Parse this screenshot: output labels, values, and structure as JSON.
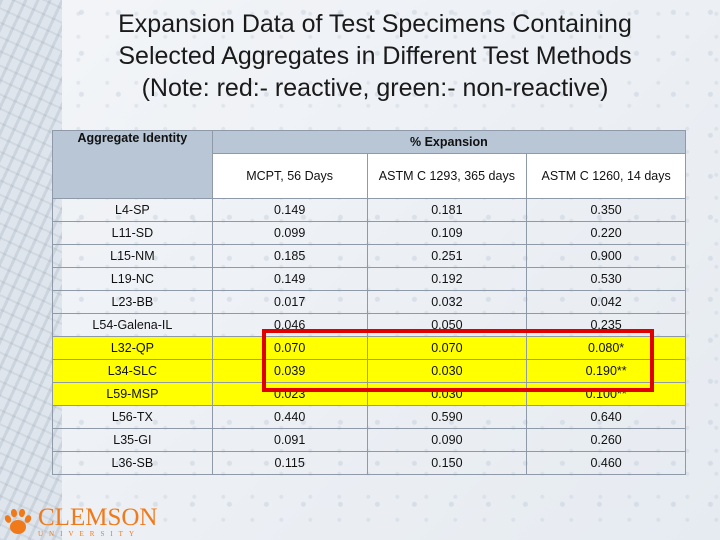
{
  "title": {
    "line1": "Expansion Data of Test Specimens Containing",
    "line2": "Selected Aggregates in Different Test Methods",
    "line3": "(Note: red:- reactive, green:- non-reactive)"
  },
  "table": {
    "aggregate_header": "Aggregate Identity",
    "expansion_header": "% Expansion",
    "columns": [
      "MCPT, 56 Days",
      "ASTM C 1293, 365 days",
      "ASTM C 1260, 14 days"
    ],
    "rows": [
      {
        "id": "L4-SP",
        "mcpt": "0.149",
        "astm1293": "0.181",
        "astm1260": "0.350"
      },
      {
        "id": "L11-SD",
        "mcpt": "0.099",
        "astm1293": "0.109",
        "astm1260": "0.220"
      },
      {
        "id": "L15-NM",
        "mcpt": "0.185",
        "astm1293": "0.251",
        "astm1260": "0.900"
      },
      {
        "id": "L19-NC",
        "mcpt": "0.149",
        "astm1293": "0.192",
        "astm1260": "0.530"
      },
      {
        "id": "L23-BB",
        "mcpt": "0.017",
        "astm1293": "0.032",
        "astm1260": "0.042"
      },
      {
        "id": "L54-Galena-IL",
        "mcpt": "0.046",
        "astm1293": "0.050",
        "astm1260": "0.235"
      },
      {
        "id": "L32-QP",
        "mcpt": "0.070",
        "astm1293": "0.070",
        "astm1260": "0.080*"
      },
      {
        "id": "L34-SLC",
        "mcpt": "0.039",
        "astm1293": "0.030",
        "astm1260": "0.190**"
      },
      {
        "id": "L59-MSP",
        "mcpt": "0.023",
        "astm1293": "0.030",
        "astm1260": "0.100**"
      },
      {
        "id": "L56-TX",
        "mcpt": "0.440",
        "astm1293": "0.590",
        "astm1260": "0.640"
      },
      {
        "id": "L35-GI",
        "mcpt": "0.091",
        "astm1293": "0.090",
        "astm1260": "0.260"
      },
      {
        "id": "L36-SB",
        "mcpt": "0.115",
        "astm1293": "0.150",
        "astm1260": "0.460"
      }
    ]
  },
  "logo": {
    "name": "CLEMSON",
    "sub": "UNIVERSITY",
    "icon": "tiger-paw-icon",
    "color": "#f07a1a"
  },
  "colors": {
    "highlight": "#ffff00",
    "box": "#e00000",
    "header_band": "#1f3a8a"
  }
}
